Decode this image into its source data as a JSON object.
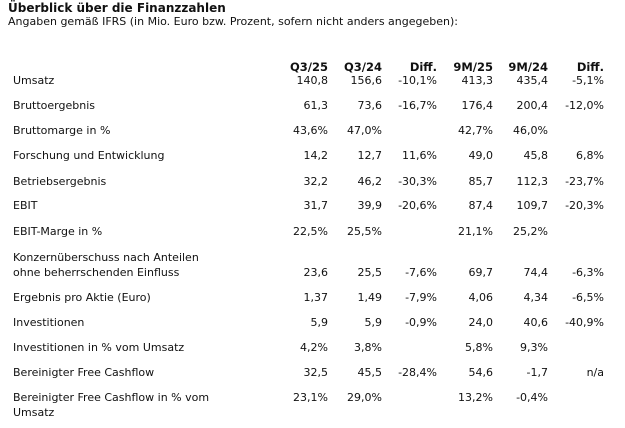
{
  "title": "Überblick über die Finanzzahlen",
  "subtitle": "Angaben gemäß IFRS (in Mio. Euro bzw. Prozent, sofern nicht anders angegeben):",
  "columns": [
    "Q3/25",
    "Q3/24",
    "Diff.",
    "9M/25",
    "9M/24",
    "Diff."
  ],
  "rows": [
    {
      "label": "Umsatz",
      "values": [
        "140,8",
        "156,6",
        "-10,1%",
        "413,3",
        "435,4",
        "-5,1%"
      ]
    },
    {
      "label": "Bruttoergebnis",
      "values": [
        "61,3",
        "73,6",
        "-16,7%",
        "176,4",
        "200,4",
        "-12,0%"
      ]
    },
    {
      "label": "Bruttomarge in %",
      "values": [
        "43,6%",
        "47,0%",
        "",
        "42,7%",
        "46,0%",
        ""
      ]
    },
    {
      "label": "Forschung und Entwicklung",
      "values": [
        "14,2",
        "12,7",
        "11,6%",
        "49,0",
        "45,8",
        "6,8%"
      ]
    },
    {
      "label": "Betriebsergebnis",
      "values": [
        "32,2",
        "46,2",
        "-30,3%",
        "85,7",
        "112,3",
        "-23,7%"
      ]
    },
    {
      "label": "EBIT",
      "values": [
        "31,7",
        "39,9",
        "-20,6%",
        "87,4",
        "109,7",
        "-20,3%"
      ]
    },
    {
      "label": "EBIT-Marge in %",
      "values": [
        "22,5%",
        "25,5%",
        "",
        "21,1%",
        "25,2%",
        ""
      ]
    },
    {
      "label": "Konzernüberschuss nach Anteilen ohne beherrschenden Einfluss",
      "values": [
        "23,6",
        "25,5",
        "-7,6%",
        "69,7",
        "74,4",
        "-6,3%"
      ]
    },
    {
      "label": "Ergebnis pro Aktie (Euro)",
      "values": [
        "1,37",
        "1,49",
        "-7,9%",
        "4,06",
        "4,34",
        "-6,5%"
      ]
    },
    {
      "label": "Investitionen",
      "values": [
        "5,9",
        "5,9",
        "-0,9%",
        "24,0",
        "40,6",
        "-40,9%"
      ]
    },
    {
      "label": "Investitionen in % vom Umsatz",
      "values": [
        "4,2%",
        "3,8%",
        "",
        "5,8%",
        "9,3%",
        ""
      ]
    },
    {
      "label": "Bereinigter Free Cashflow",
      "values": [
        "32,5",
        "45,5",
        "-28,4%",
        "54,6",
        "-1,7",
        "n/a"
      ]
    },
    {
      "label": "Bereinigter Free Cashflow in % vom Umsatz",
      "values": [
        "23,1%",
        "29,0%",
        "",
        "13,2%",
        "-0,4%",
        ""
      ]
    }
  ]
}
